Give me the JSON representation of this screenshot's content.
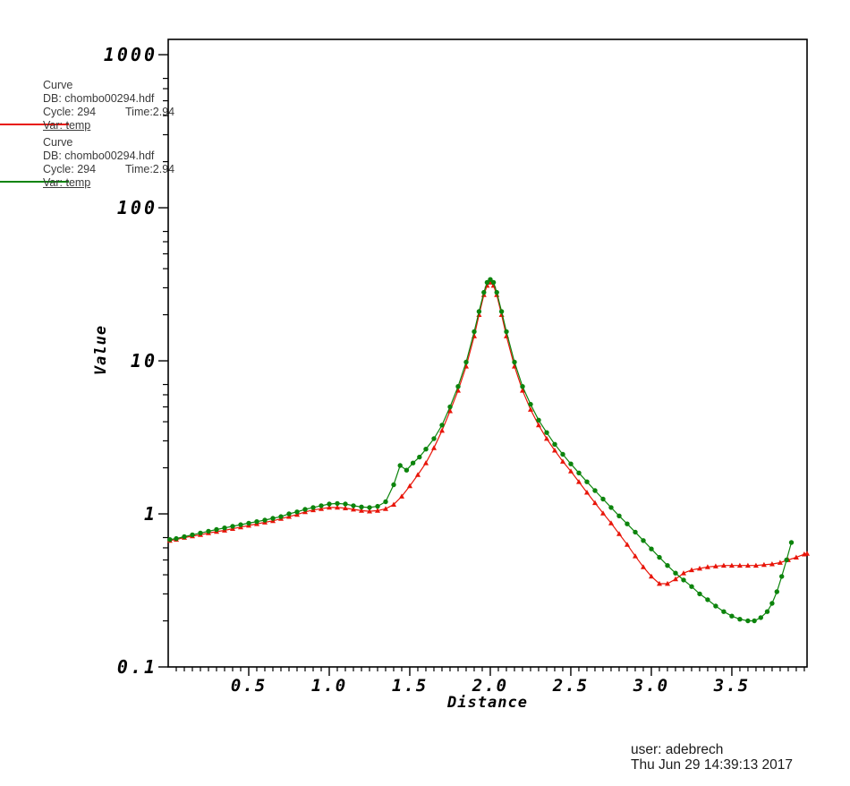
{
  "window": {
    "background": "#ffffff"
  },
  "legend": {
    "entries": [
      {
        "title": "Curve",
        "db": "DB: chombo00294.hdf",
        "cycle": "Cycle: 294",
        "time": "Time:2.94",
        "var": "Var: temp",
        "color": "#e81509"
      },
      {
        "title": "Curve",
        "db": "DB: chombo00294.hdf",
        "cycle": "Cycle: 294",
        "time": "Time:2.94",
        "var": "Var: temp",
        "color": "#0c840c"
      }
    ]
  },
  "footer": {
    "user": "user: adebrech",
    "datetime": "Thu Jun 29 14:39:13 2017"
  },
  "chart_data": {
    "type": "line",
    "title": "",
    "xlabel": "Distance",
    "ylabel": "Value",
    "x_scale": "linear",
    "y_scale": "log",
    "xlim": [
      0,
      3.967
    ],
    "ylim": [
      0.1,
      1258.9
    ],
    "grid": false,
    "legend_position": "top-left-outside",
    "x_major_ticks": [
      {
        "value": 0.5,
        "label": "0.5"
      },
      {
        "value": 1.0,
        "label": "1.0"
      },
      {
        "value": 1.5,
        "label": "1.5"
      },
      {
        "value": 2.0,
        "label": "2.0"
      },
      {
        "value": 2.5,
        "label": "2.5"
      },
      {
        "value": 3.0,
        "label": "3.0"
      },
      {
        "value": 3.5,
        "label": "3.5"
      }
    ],
    "x_minor_step": 0.05,
    "y_major_ticks": [
      {
        "value": 0.1,
        "label": "0.1"
      },
      {
        "value": 1,
        "label": "1"
      },
      {
        "value": 10,
        "label": "10"
      },
      {
        "value": 100,
        "label": "100"
      },
      {
        "value": 1000,
        "label": "1000"
      }
    ],
    "y_minor_multiples": [
      2,
      3,
      4,
      5,
      6,
      7
    ],
    "series": [
      {
        "name": "temp (chombo00294.hdf, cycle 294, time 2.94)",
        "color": "#e81509",
        "marker": "triangle",
        "points": [
          [
            0.01,
            0.67
          ],
          [
            0.05,
            0.68
          ],
          [
            0.1,
            0.7
          ],
          [
            0.15,
            0.715
          ],
          [
            0.2,
            0.73
          ],
          [
            0.25,
            0.75
          ],
          [
            0.3,
            0.765
          ],
          [
            0.35,
            0.78
          ],
          [
            0.4,
            0.8
          ],
          [
            0.45,
            0.82
          ],
          [
            0.5,
            0.84
          ],
          [
            0.55,
            0.86
          ],
          [
            0.6,
            0.88
          ],
          [
            0.65,
            0.9
          ],
          [
            0.7,
            0.93
          ],
          [
            0.75,
            0.96
          ],
          [
            0.8,
            0.99
          ],
          [
            0.85,
            1.03
          ],
          [
            0.9,
            1.06
          ],
          [
            0.95,
            1.08
          ],
          [
            1.0,
            1.1
          ],
          [
            1.05,
            1.1
          ],
          [
            1.1,
            1.09
          ],
          [
            1.15,
            1.07
          ],
          [
            1.2,
            1.05
          ],
          [
            1.25,
            1.04
          ],
          [
            1.3,
            1.05
          ],
          [
            1.35,
            1.08
          ],
          [
            1.4,
            1.15
          ],
          [
            1.45,
            1.3
          ],
          [
            1.5,
            1.52
          ],
          [
            1.55,
            1.8
          ],
          [
            1.6,
            2.15
          ],
          [
            1.65,
            2.7
          ],
          [
            1.7,
            3.5
          ],
          [
            1.75,
            4.7
          ],
          [
            1.8,
            6.4
          ],
          [
            1.85,
            9.2
          ],
          [
            1.9,
            14.5
          ],
          [
            1.93,
            20.0
          ],
          [
            1.96,
            27.0
          ],
          [
            1.98,
            31.0
          ],
          [
            2.0,
            32.5
          ],
          [
            2.02,
            31.0
          ],
          [
            2.04,
            27.0
          ],
          [
            2.07,
            20.0
          ],
          [
            2.1,
            14.5
          ],
          [
            2.15,
            9.2
          ],
          [
            2.2,
            6.4
          ],
          [
            2.25,
            4.8
          ],
          [
            2.3,
            3.8
          ],
          [
            2.35,
            3.1
          ],
          [
            2.4,
            2.6
          ],
          [
            2.45,
            2.2
          ],
          [
            2.5,
            1.9
          ],
          [
            2.55,
            1.62
          ],
          [
            2.6,
            1.38
          ],
          [
            2.65,
            1.18
          ],
          [
            2.7,
            1.01
          ],
          [
            2.75,
            0.87
          ],
          [
            2.8,
            0.74
          ],
          [
            2.85,
            0.63
          ],
          [
            2.9,
            0.53
          ],
          [
            2.95,
            0.45
          ],
          [
            3.0,
            0.39
          ],
          [
            3.05,
            0.35
          ],
          [
            3.1,
            0.35
          ],
          [
            3.15,
            0.375
          ],
          [
            3.2,
            0.41
          ],
          [
            3.25,
            0.43
          ],
          [
            3.3,
            0.44
          ],
          [
            3.35,
            0.45
          ],
          [
            3.4,
            0.455
          ],
          [
            3.45,
            0.46
          ],
          [
            3.5,
            0.46
          ],
          [
            3.55,
            0.46
          ],
          [
            3.6,
            0.46
          ],
          [
            3.65,
            0.46
          ],
          [
            3.7,
            0.465
          ],
          [
            3.75,
            0.47
          ],
          [
            3.8,
            0.48
          ],
          [
            3.85,
            0.5
          ],
          [
            3.9,
            0.52
          ],
          [
            3.95,
            0.545
          ],
          [
            3.967,
            0.55
          ]
        ]
      },
      {
        "name": "temp (chombo00294.hdf, cycle 294, time 2.94)",
        "color": "#0c840c",
        "marker": "circle",
        "points": [
          [
            0.01,
            0.68
          ],
          [
            0.05,
            0.69
          ],
          [
            0.1,
            0.71
          ],
          [
            0.15,
            0.73
          ],
          [
            0.2,
            0.75
          ],
          [
            0.25,
            0.77
          ],
          [
            0.3,
            0.79
          ],
          [
            0.35,
            0.81
          ],
          [
            0.4,
            0.83
          ],
          [
            0.45,
            0.85
          ],
          [
            0.5,
            0.87
          ],
          [
            0.55,
            0.89
          ],
          [
            0.6,
            0.91
          ],
          [
            0.65,
            0.935
          ],
          [
            0.7,
            0.96
          ],
          [
            0.75,
            1.0
          ],
          [
            0.8,
            1.03
          ],
          [
            0.85,
            1.07
          ],
          [
            0.9,
            1.1
          ],
          [
            0.95,
            1.13
          ],
          [
            1.0,
            1.16
          ],
          [
            1.05,
            1.17
          ],
          [
            1.1,
            1.16
          ],
          [
            1.15,
            1.13
          ],
          [
            1.2,
            1.11
          ],
          [
            1.25,
            1.1
          ],
          [
            1.3,
            1.12
          ],
          [
            1.35,
            1.2
          ],
          [
            1.4,
            1.55
          ],
          [
            1.44,
            2.07
          ],
          [
            1.48,
            1.93
          ],
          [
            1.52,
            2.15
          ],
          [
            1.56,
            2.35
          ],
          [
            1.6,
            2.65
          ],
          [
            1.65,
            3.1
          ],
          [
            1.7,
            3.8
          ],
          [
            1.75,
            5.0
          ],
          [
            1.8,
            6.8
          ],
          [
            1.85,
            9.8
          ],
          [
            1.9,
            15.5
          ],
          [
            1.93,
            21.0
          ],
          [
            1.96,
            28.0
          ],
          [
            1.98,
            32.5
          ],
          [
            2.0,
            34.0
          ],
          [
            2.02,
            32.5
          ],
          [
            2.04,
            28.0
          ],
          [
            2.07,
            21.0
          ],
          [
            2.1,
            15.5
          ],
          [
            2.15,
            9.8
          ],
          [
            2.2,
            6.8
          ],
          [
            2.25,
            5.2
          ],
          [
            2.3,
            4.1
          ],
          [
            2.35,
            3.4
          ],
          [
            2.4,
            2.85
          ],
          [
            2.45,
            2.45
          ],
          [
            2.5,
            2.12
          ],
          [
            2.55,
            1.85
          ],
          [
            2.6,
            1.62
          ],
          [
            2.65,
            1.42
          ],
          [
            2.7,
            1.25
          ],
          [
            2.75,
            1.1
          ],
          [
            2.8,
            0.97
          ],
          [
            2.85,
            0.86
          ],
          [
            2.9,
            0.76
          ],
          [
            2.95,
            0.67
          ],
          [
            3.0,
            0.59
          ],
          [
            3.05,
            0.52
          ],
          [
            3.1,
            0.46
          ],
          [
            3.15,
            0.41
          ],
          [
            3.2,
            0.37
          ],
          [
            3.25,
            0.335
          ],
          [
            3.3,
            0.3
          ],
          [
            3.35,
            0.275
          ],
          [
            3.4,
            0.25
          ],
          [
            3.45,
            0.23
          ],
          [
            3.5,
            0.215
          ],
          [
            3.55,
            0.205
          ],
          [
            3.6,
            0.2
          ],
          [
            3.64,
            0.2
          ],
          [
            3.68,
            0.21
          ],
          [
            3.72,
            0.23
          ],
          [
            3.75,
            0.26
          ],
          [
            3.78,
            0.31
          ],
          [
            3.81,
            0.39
          ],
          [
            3.84,
            0.5
          ],
          [
            3.87,
            0.65
          ]
        ]
      }
    ]
  }
}
